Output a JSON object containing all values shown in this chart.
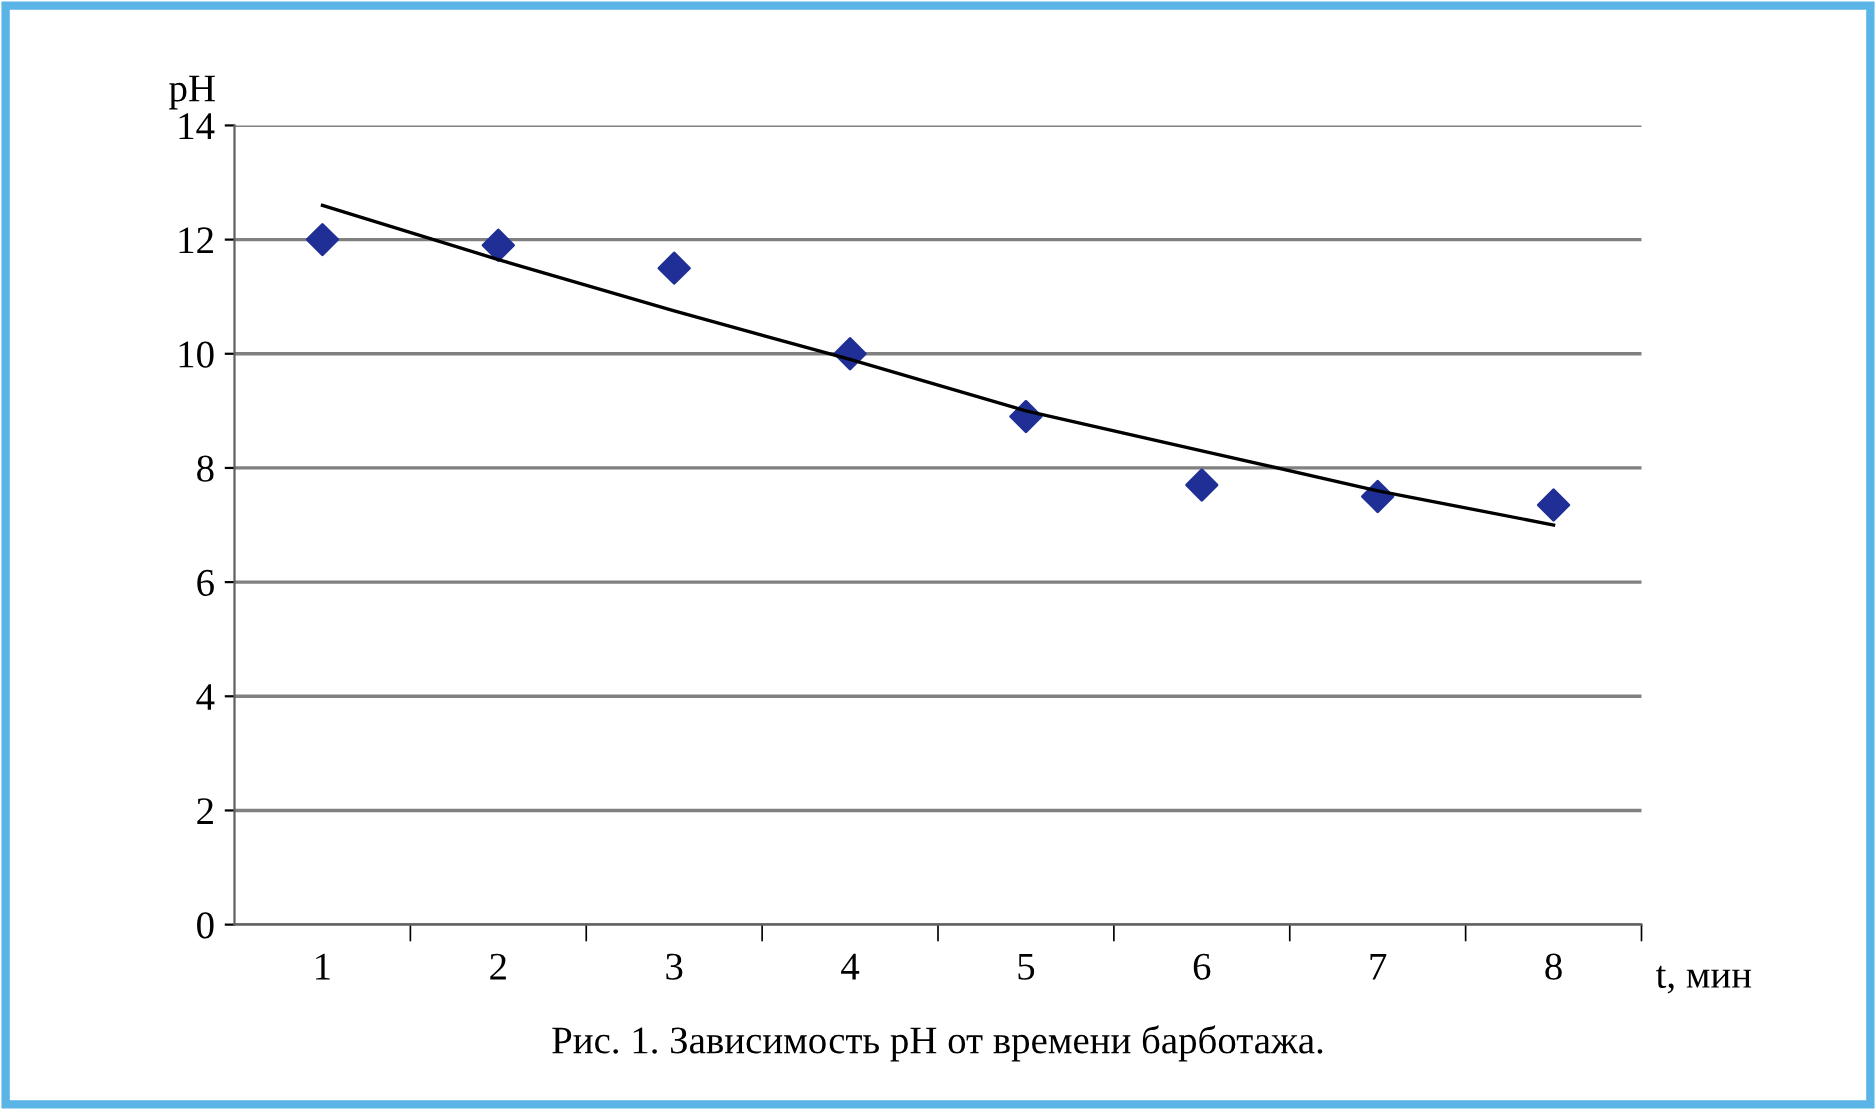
{
  "chart_data": {
    "type": "scatter",
    "categories": [
      "1",
      "2",
      "3",
      "4",
      "5",
      "6",
      "7",
      "8"
    ],
    "series": [
      {
        "color": "#1f2f96",
        "marker": "diamond",
        "values": [
          12.0,
          11.9,
          11.5,
          10.0,
          8.9,
          7.7,
          7.5,
          7.35
        ]
      },
      {
        "type": "line",
        "color": "#000000",
        "marker": "none",
        "line_style": "solid",
        "values": [
          12.6,
          11.65,
          10.75,
          9.9,
          9.0,
          8.3,
          7.6,
          7.0
        ]
      }
    ],
    "ylabel": "pH",
    "xlabel": "t, мин",
    "ylim": [
      0,
      14
    ],
    "yticks": [
      0,
      2,
      4,
      6,
      8,
      10,
      12,
      14
    ],
    "grid": "y",
    "legend": false,
    "annotations": [
      "Рис. 1. Зависимость pH от времени барботажа."
    ]
  }
}
